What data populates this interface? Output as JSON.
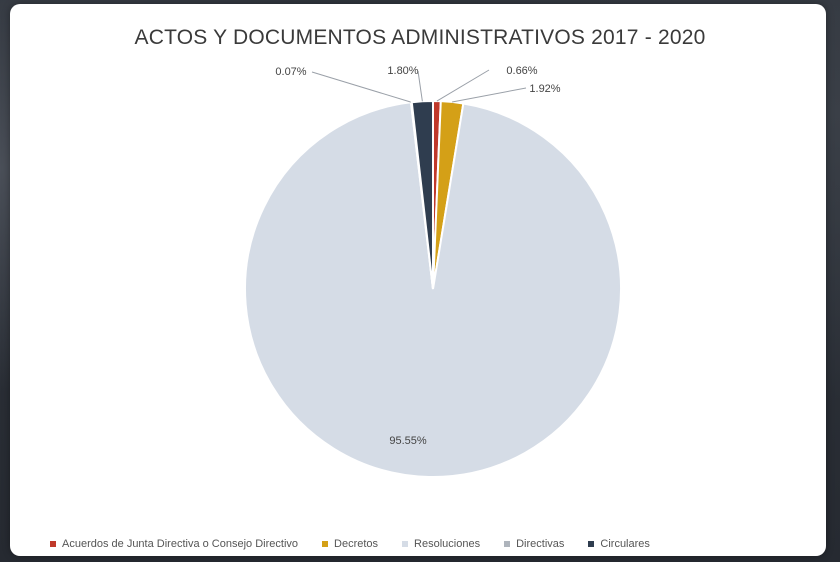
{
  "chart_data": {
    "type": "pie",
    "title": "ACTOS Y DOCUMENTOS ADMINISTRATIVOS 2017 - 2020",
    "slices": [
      {
        "name": "Acuerdos de Junta Directiva o Consejo Directivo",
        "value": 0.66,
        "label": "0.66%",
        "color": "#c0392b"
      },
      {
        "name": "Decretos",
        "value": 1.92,
        "label": "1.92%",
        "color": "#d4a017"
      },
      {
        "name": "Resoluciones",
        "value": 95.55,
        "label": "95.55%",
        "color": "#d5dce6"
      },
      {
        "name": "Directivas",
        "value": 0.07,
        "label": "0.07%",
        "color": "#aeb4bc"
      },
      {
        "name": "Circulares",
        "value": 1.8,
        "label": "1.80%",
        "color": "#2f3d4f"
      }
    ],
    "legend_position": "bottom"
  }
}
